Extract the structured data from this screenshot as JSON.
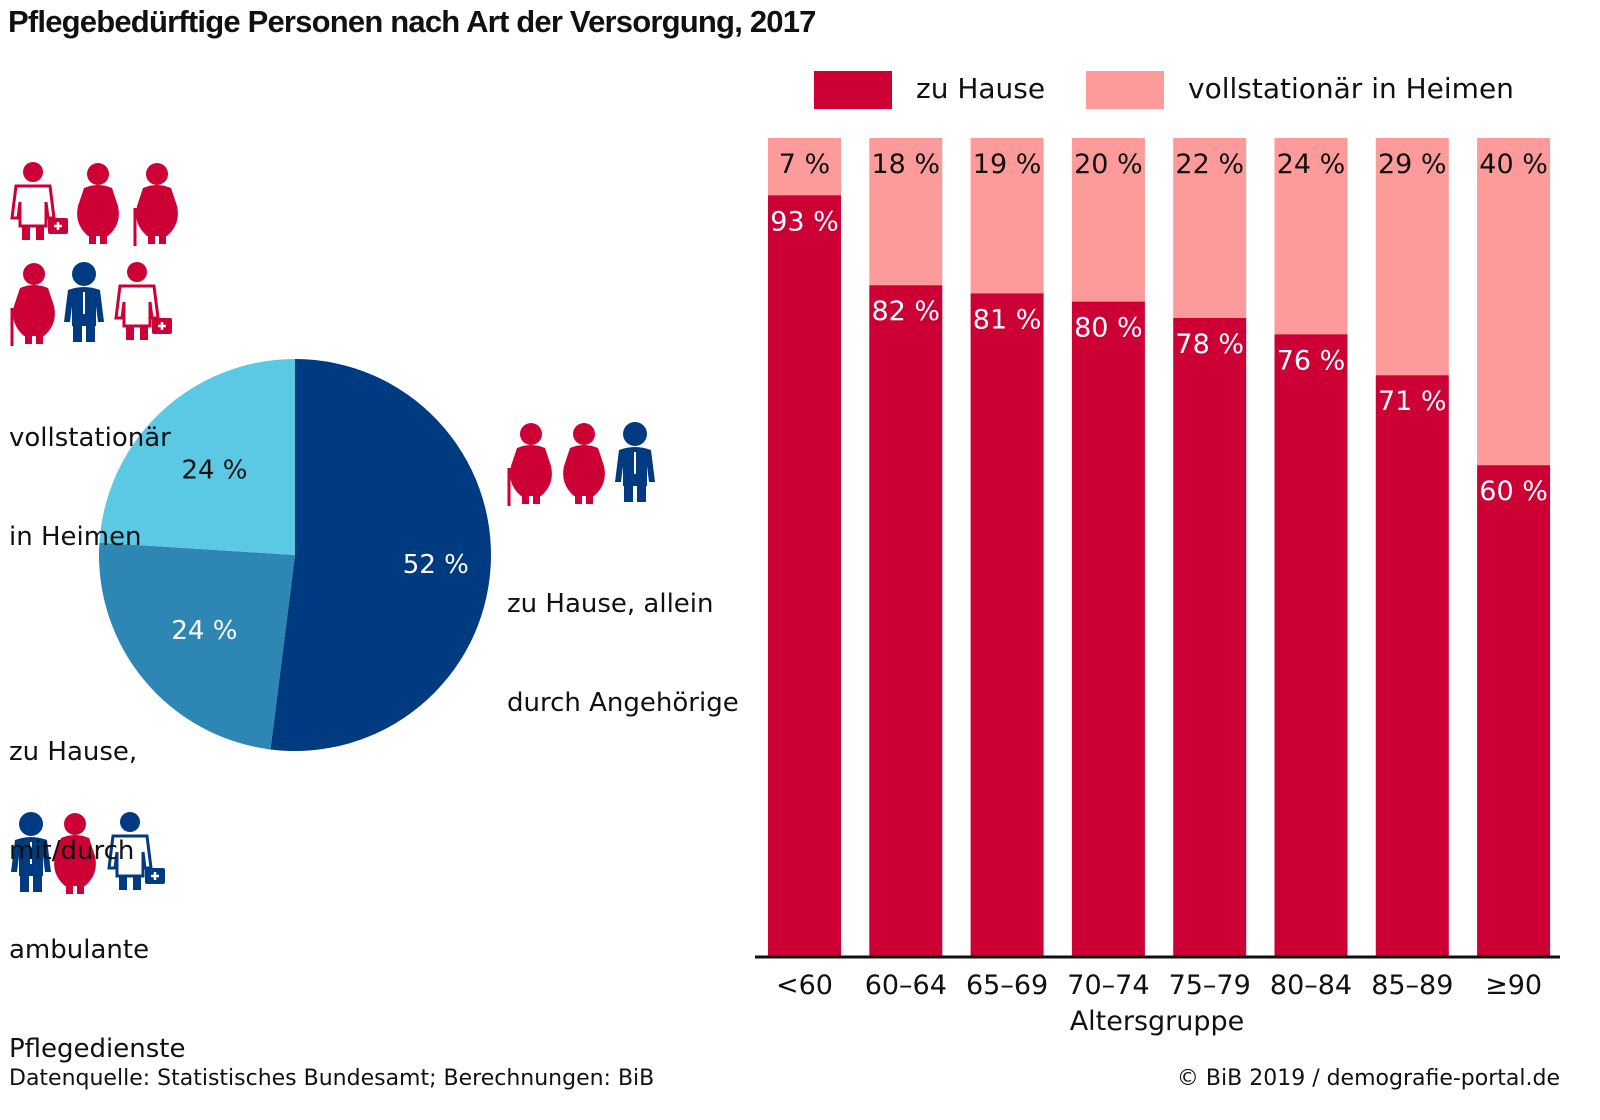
{
  "title": "Pflegebedürftige Personen nach Art der Versorgung, 2017",
  "colors": {
    "zu_hause": "#cc0035",
    "heime": "#fd9a9a",
    "pie_dark": "#003a80",
    "pie_mid": "#2e86b4",
    "pie_light": "#5bc8e4",
    "person_red": "#cc0035",
    "person_blue": "#003a80"
  },
  "legend": [
    {
      "label": "zu Hause",
      "color": "#cc0035"
    },
    {
      "label": "vollstationär in Heimen",
      "color": "#fd9a9a"
    }
  ],
  "pie_labels": {
    "heime": [
      "vollstationär",
      "in Heimen"
    ],
    "ambulant": [
      "zu Hause,",
      "mit/durch",
      "ambulante",
      "Pflegedienste"
    ],
    "angehoerige": [
      "zu Hause, allein",
      "durch Angehörige"
    ]
  },
  "icons": {
    "heime_group": [
      "doctor-icon",
      "elderly-woman-icon",
      "elderly-woman-cane-icon",
      "elderly-woman-cane-icon",
      "elderly-man-icon",
      "doctor-icon"
    ],
    "angehoerige_group": [
      "elderly-woman-cane-icon",
      "woman-icon",
      "man-icon"
    ],
    "ambulant_group": [
      "elderly-man-icon",
      "woman-icon",
      "doctor-icon"
    ]
  },
  "chart_data": [
    {
      "type": "pie",
      "title": "",
      "slices": [
        {
          "label": "zu Hause, allein durch Angehörige",
          "value": 52,
          "display": "52 %",
          "color": "#003a80"
        },
        {
          "label": "zu Hause, mit/durch ambulante Pflegedienste",
          "value": 24,
          "display": "24 %",
          "color": "#2e86b4"
        },
        {
          "label": "vollstationär in Heimen",
          "value": 24,
          "display": "24 %",
          "color": "#5bc8e4"
        }
      ],
      "start_angle_deg": 0,
      "direction": "clockwise"
    },
    {
      "type": "bar",
      "stacked": true,
      "percent": true,
      "xlabel": "Altersgruppe",
      "ylabel": "",
      "ylim": [
        0,
        100
      ],
      "grid": false,
      "legend_position": "top",
      "categories": [
        "<60",
        "60–64",
        "65–69",
        "70–74",
        "75–79",
        "80–84",
        "85–89",
        "≥90"
      ],
      "series": [
        {
          "name": "zu Hause",
          "values": [
            93,
            82,
            81,
            80,
            78,
            76,
            71,
            60
          ],
          "labels": [
            "93 %",
            "82 %",
            "81 %",
            "80 %",
            "78 %",
            "76 %",
            "71 %",
            "60 %"
          ]
        },
        {
          "name": "vollstationär in Heimen",
          "values": [
            7,
            18,
            19,
            20,
            22,
            24,
            29,
            40
          ],
          "labels": [
            "7 %",
            "18 %",
            "19 %",
            "20 %",
            "22 %",
            "24 %",
            "29 %",
            "40 %"
          ]
        }
      ]
    }
  ],
  "footer": {
    "source": "Datenquelle: Statistisches Bundesamt; Berechnungen: BiB",
    "copyright": "© BiB 2019 / demografie-portal.de"
  }
}
